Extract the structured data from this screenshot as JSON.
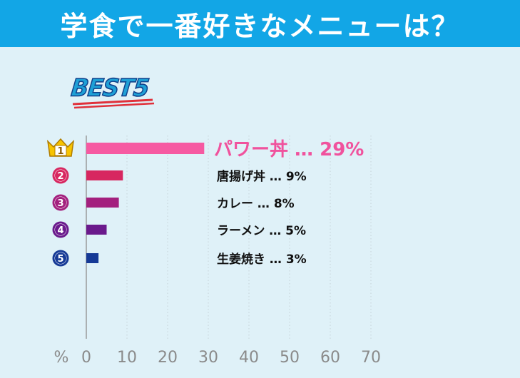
{
  "header": {
    "title": "学食で一番好きなメニューは？"
  },
  "badge": {
    "text": "BEST5"
  },
  "chart_data": {
    "type": "bar",
    "orientation": "horizontal",
    "title": "学食で一番好きなメニューは？",
    "categories": [
      "パワー丼",
      "唐揚げ丼",
      "カレー",
      "ラーメン",
      "生姜焼き"
    ],
    "values": [
      29,
      9,
      8,
      5,
      3
    ],
    "value_labels": [
      "29%",
      "9%",
      "8%",
      "5%",
      "3%"
    ],
    "ranks": [
      "1",
      "2",
      "3",
      "4",
      "5"
    ],
    "separator": "…",
    "colors": [
      "#f65aa2",
      "#d72760",
      "#a3207e",
      "#6a1a8c",
      "#163a96"
    ],
    "rank_colors": [
      "#f7c400",
      "#d72760",
      "#a3207e",
      "#6a1a8c",
      "#163a96"
    ],
    "xlim": [
      0,
      70
    ],
    "xticks": [
      "0",
      "10",
      "20",
      "30",
      "40",
      "50",
      "60",
      "70"
    ],
    "xlabel": "%",
    "grid": true
  }
}
